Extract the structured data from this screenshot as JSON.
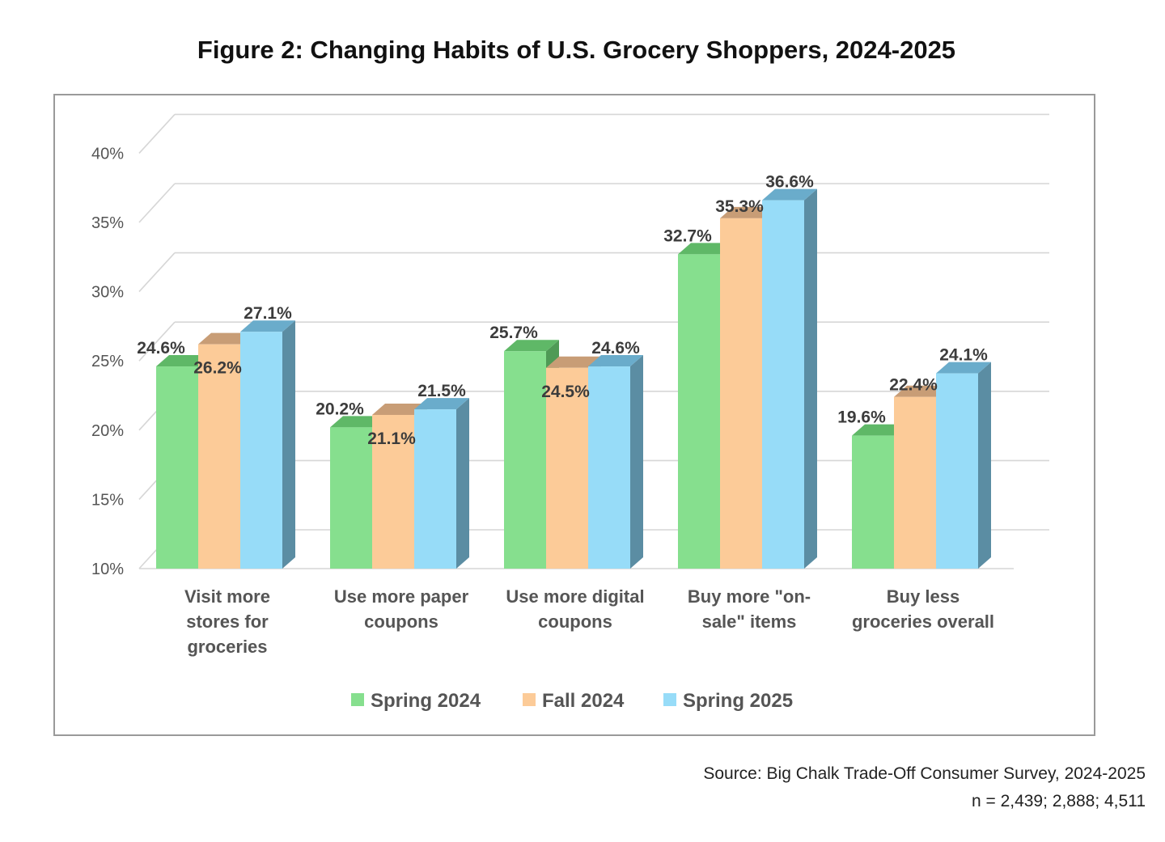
{
  "chart_data": {
    "type": "bar",
    "title": "Figure 2: Changing Habits of U.S. Grocery Shoppers, 2024-2025",
    "categories": [
      [
        "Visit more",
        "stores for",
        "groceries"
      ],
      [
        "Use more paper",
        "coupons"
      ],
      [
        "Use more digital",
        "coupons"
      ],
      [
        "Buy more \"on-",
        "sale\" items"
      ],
      [
        "Buy less",
        "groceries overall"
      ]
    ],
    "series": [
      {
        "name": "Spring 2024",
        "values": [
          24.6,
          20.2,
          25.7,
          32.7,
          19.6
        ],
        "labels": [
          "24.6%",
          "20.2%",
          "25.7%",
          "32.7%",
          "19.6%"
        ]
      },
      {
        "name": "Fall 2024",
        "values": [
          26.2,
          21.1,
          24.5,
          35.3,
          22.4
        ],
        "labels": [
          "26.2%",
          "21.1%",
          "24.5%",
          "35.3%",
          "22.4%"
        ]
      },
      {
        "name": "Spring 2025",
        "values": [
          27.1,
          21.5,
          24.6,
          36.6,
          24.1
        ],
        "labels": [
          "27.1%",
          "21.5%",
          "24.6%",
          "36.6%",
          "24.1%"
        ]
      }
    ],
    "ylim": [
      10,
      40
    ],
    "yticks": [
      "10%",
      "15%",
      "20%",
      "25%",
      "30%",
      "35%",
      "40%"
    ],
    "xlabel": "",
    "ylabel": "",
    "legend": "bottom-center",
    "colors": {
      "Spring 2024": {
        "front": "#86df8e",
        "top": "#5fb867",
        "side": "#4f9a56"
      },
      "Fall 2024": {
        "front": "#fccb98",
        "top": "#c89d76",
        "side": "#b38c66"
      },
      "Spring 2025": {
        "front": "#97dcf8",
        "top": "#6aaccb",
        "side": "#5b8da3"
      }
    }
  },
  "source": {
    "line1": "Source: Big Chalk Trade-Off Consumer Survey, 2024-2025",
    "line2": "n = 2,439;  2,888;  4,511"
  }
}
